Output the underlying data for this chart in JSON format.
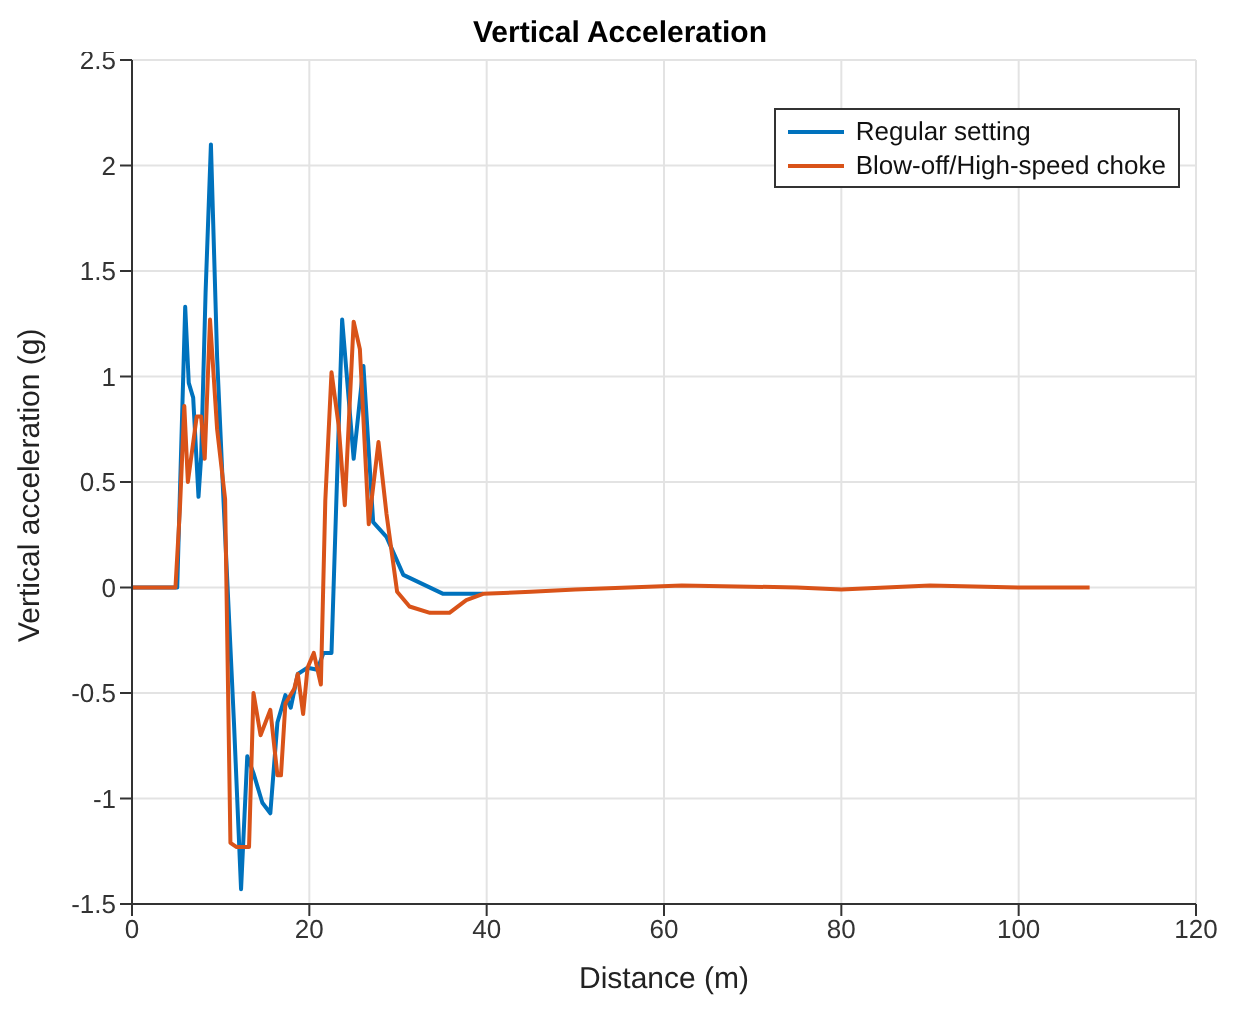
{
  "chart_data": {
    "type": "line",
    "title": "Vertical Acceleration",
    "xlabel": "Distance (m)",
    "ylabel": "Vertical acceleration (g)",
    "xlim": [
      0,
      120
    ],
    "xticks": [
      0,
      20,
      40,
      60,
      80,
      100,
      120
    ],
    "ylim": [
      -1.5,
      2.5
    ],
    "yticks": [
      -1.5,
      -1,
      -0.5,
      0,
      0.5,
      1,
      1.5,
      2,
      2.5
    ],
    "grid": true,
    "legend": "top right",
    "line_style": "solid",
    "marker": "none",
    "series": [
      {
        "name": "Regular setting",
        "color": "#0072bd",
        "x": [
          0,
          5.1,
          6.0,
          6.4,
          6.9,
          7.5,
          7.8,
          8.3,
          8.9,
          9.6,
          10.3,
          11.5,
          12.3,
          13.0,
          13.7,
          14.7,
          15.6,
          16.4,
          17.3,
          17.9,
          18.7,
          19.8,
          20.9,
          21.6,
          22.5,
          23.7,
          25.0,
          26.1,
          27.2,
          28.7,
          30.6,
          35.1,
          39.6
        ],
        "values": [
          0,
          0,
          1.33,
          0.97,
          0.9,
          0.43,
          0.62,
          1.4,
          2.1,
          1.09,
          0.43,
          -0.64,
          -1.43,
          -0.8,
          -0.88,
          -1.02,
          -1.07,
          -0.64,
          -0.51,
          -0.57,
          -0.41,
          -0.38,
          -0.39,
          -0.31,
          -0.31,
          1.27,
          0.61,
          1.05,
          0.31,
          0.24,
          0.06,
          -0.03,
          -0.03
        ]
      },
      {
        "name": "Blow-off/High-speed choke",
        "color": "#d95319",
        "x": [
          0,
          4.9,
          5.4,
          5.9,
          6.3,
          7.3,
          7.8,
          8.2,
          8.8,
          9.6,
          10.5,
          11.1,
          11.8,
          13.2,
          13.7,
          14.5,
          15.6,
          16.4,
          16.8,
          17.3,
          18.3,
          18.7,
          19.3,
          19.8,
          20.5,
          21.3,
          21.8,
          22.5,
          23.3,
          24.0,
          25.0,
          25.7,
          26.7,
          27.8,
          28.7,
          29.9,
          31.3,
          33.6,
          35.8,
          37.7,
          39.6,
          45,
          50,
          62,
          75,
          80,
          90,
          100,
          108
        ],
        "values": [
          0,
          0,
          0.37,
          0.86,
          0.5,
          0.81,
          0.81,
          0.61,
          1.27,
          0.75,
          0.42,
          -1.21,
          -1.23,
          -1.23,
          -0.5,
          -0.7,
          -0.58,
          -0.89,
          -0.89,
          -0.55,
          -0.48,
          -0.41,
          -0.6,
          -0.38,
          -0.31,
          -0.46,
          0.41,
          1.02,
          0.77,
          0.39,
          1.26,
          1.13,
          0.3,
          0.69,
          0.35,
          -0.02,
          -0.09,
          -0.12,
          -0.12,
          -0.06,
          -0.03,
          -0.02,
          -0.01,
          0.01,
          0,
          -0.01,
          0.01,
          0,
          0
        ]
      }
    ]
  }
}
